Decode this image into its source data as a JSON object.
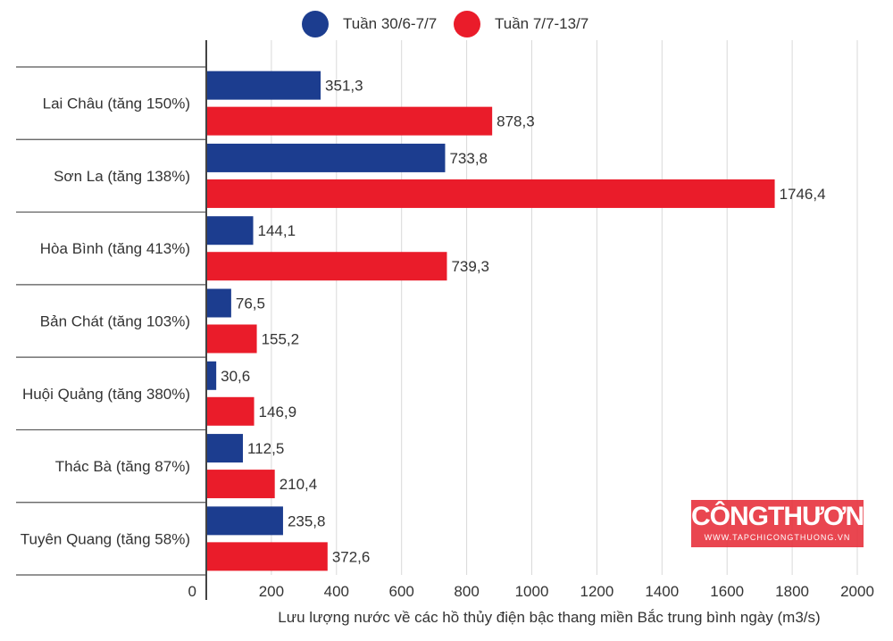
{
  "legend": [
    {
      "name": "Tuần 30/6-7/7",
      "color": "#1c3d8f"
    },
    {
      "name": "Tuần 7/7-13/7",
      "color": "#ea1c2a"
    }
  ],
  "logo": {
    "main": "CÔNGTHƯƠNG",
    "sub": "WWW.TAPCHICONGTHUONG.VN"
  },
  "chart_data": {
    "type": "bar",
    "orientation": "horizontal",
    "categories": [
      "Lai Châu (tăng 150%)",
      "Sơn La (tăng 138%)",
      "Hòa Bình (tăng 413%)",
      "Bản Chát (tăng 103%)",
      "Huội Quảng (tăng 380%)",
      "Thác Bà (tăng 87%)",
      "Tuyên Quang (tăng 58%)"
    ],
    "series": [
      {
        "name": "Tuần 30/6-7/7",
        "color": "#1c3d8f",
        "values": [
          351.3,
          733.8,
          144.1,
          76.5,
          30.6,
          112.5,
          235.8
        ],
        "labels": [
          "351,3",
          "733,8",
          "144,1",
          "76,5",
          "30,6",
          "112,5",
          "235,8"
        ]
      },
      {
        "name": "Tuần 7/7-13/7",
        "color": "#ea1c2a",
        "values": [
          878.3,
          1746.4,
          739.3,
          155.2,
          146.9,
          210.4,
          372.6
        ],
        "labels": [
          "878,3",
          "1746,4",
          "739,3",
          "155,2",
          "146,9",
          "210,4",
          "372,6"
        ]
      }
    ],
    "xticks": [
      "0",
      "200",
      "400",
      "600",
      "800",
      "1000",
      "1200",
      "1400",
      "1600",
      "1800",
      "2000"
    ],
    "xlim": [
      0,
      2000
    ],
    "xlabel": "Lưu lượng nước về các hồ thủy điện bậc thang miền Bắc trung bình ngày (m3/s)",
    "grid": true,
    "legend_position": "top"
  }
}
